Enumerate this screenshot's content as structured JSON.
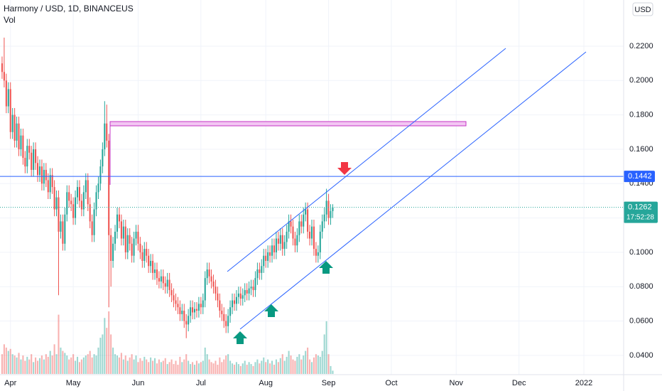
{
  "chart_data": {
    "type": "candlestick",
    "title": "Harmony / USD, 1D, BINANCEUS",
    "volume_label": "Vol",
    "currency": "USD",
    "up_color": "#26a69a",
    "down_color": "#ef5350",
    "grid": true,
    "ylim": [
      0.0267,
      0.2469
    ],
    "yticks": [
      {
        "value": 0.04,
        "label": "0.0400"
      },
      {
        "value": 0.06,
        "label": "0.0600"
      },
      {
        "value": 0.08,
        "label": "0.0800"
      },
      {
        "value": 0.1,
        "label": "0.1000"
      },
      {
        "value": 0.12,
        "label": "0.1200"
      },
      {
        "value": 0.14,
        "label": "0.1400"
      },
      {
        "value": 0.16,
        "label": "0.1600"
      },
      {
        "value": 0.18,
        "label": "0.1800"
      },
      {
        "value": 0.2,
        "label": "0.2000"
      },
      {
        "value": 0.22,
        "label": "0.2200"
      }
    ],
    "xlim": [
      -1,
      297
    ],
    "xticks": [
      {
        "value": 4,
        "label": "Apr"
      },
      {
        "value": 34,
        "label": "May"
      },
      {
        "value": 65,
        "label": "Jun"
      },
      {
        "value": 95,
        "label": "Jul"
      },
      {
        "value": 126,
        "label": "Aug"
      },
      {
        "value": 156,
        "label": "Sep"
      },
      {
        "value": 186,
        "label": "Oct"
      },
      {
        "value": 217,
        "label": "Nov"
      },
      {
        "value": 247,
        "label": "Dec"
      },
      {
        "value": 278,
        "label": "2022"
      }
    ],
    "level": {
      "value": 0.1442,
      "label": "0.1442",
      "color": "#2962ff"
    },
    "last": {
      "value": 0.1262,
      "label": "0.1262",
      "countdown": "17:52:28"
    },
    "ohlc": [
      [
        0.21,
        0.214,
        0.201,
        0.205
      ],
      [
        0.205,
        0.225,
        0.196,
        0.2
      ],
      [
        0.2,
        0.204,
        0.181,
        0.185
      ],
      [
        0.185,
        0.199,
        0.181,
        0.195
      ],
      [
        0.195,
        0.199,
        0.166,
        0.17
      ],
      [
        0.17,
        0.184,
        0.166,
        0.18
      ],
      [
        0.18,
        0.184,
        0.161,
        0.165
      ],
      [
        0.165,
        0.179,
        0.161,
        0.175
      ],
      [
        0.175,
        0.179,
        0.156,
        0.16
      ],
      [
        0.16,
        0.172,
        0.156,
        0.168
      ],
      [
        0.168,
        0.172,
        0.151,
        0.155
      ],
      [
        0.155,
        0.159,
        0.146,
        0.15
      ],
      [
        0.15,
        0.166,
        0.146,
        0.162
      ],
      [
        0.162,
        0.166,
        0.154,
        0.158
      ],
      [
        0.158,
        0.162,
        0.144,
        0.148
      ],
      [
        0.148,
        0.164,
        0.144,
        0.16
      ],
      [
        0.16,
        0.164,
        0.148,
        0.152
      ],
      [
        0.152,
        0.156,
        0.141,
        0.145
      ],
      [
        0.145,
        0.154,
        0.141,
        0.15
      ],
      [
        0.15,
        0.154,
        0.136,
        0.14
      ],
      [
        0.14,
        0.152,
        0.136,
        0.148
      ],
      [
        0.148,
        0.152,
        0.138,
        0.142
      ],
      [
        0.142,
        0.146,
        0.131,
        0.135
      ],
      [
        0.135,
        0.149,
        0.131,
        0.145
      ],
      [
        0.145,
        0.149,
        0.134,
        0.138
      ],
      [
        0.138,
        0.142,
        0.121,
        0.125
      ],
      [
        0.125,
        0.136,
        0.121,
        0.132
      ],
      [
        0.132,
        0.136,
        0.075,
        0.112
      ],
      [
        0.112,
        0.122,
        0.108,
        0.118
      ],
      [
        0.118,
        0.122,
        0.101,
        0.105
      ],
      [
        0.105,
        0.126,
        0.101,
        0.122
      ],
      [
        0.122,
        0.139,
        0.118,
        0.135
      ],
      [
        0.135,
        0.139,
        0.126,
        0.13
      ],
      [
        0.13,
        0.134,
        0.124,
        0.128
      ],
      [
        0.128,
        0.132,
        0.116,
        0.12
      ],
      [
        0.12,
        0.136,
        0.116,
        0.132
      ],
      [
        0.132,
        0.142,
        0.128,
        0.138
      ],
      [
        0.138,
        0.142,
        0.126,
        0.13
      ],
      [
        0.13,
        0.134,
        0.121,
        0.125
      ],
      [
        0.125,
        0.139,
        0.121,
        0.135
      ],
      [
        0.135,
        0.146,
        0.131,
        0.142
      ],
      [
        0.142,
        0.146,
        0.124,
        0.128
      ],
      [
        0.128,
        0.132,
        0.114,
        0.118
      ],
      [
        0.118,
        0.122,
        0.106,
        0.11
      ],
      [
        0.11,
        0.129,
        0.106,
        0.125
      ],
      [
        0.125,
        0.139,
        0.121,
        0.135
      ],
      [
        0.135,
        0.144,
        0.131,
        0.14
      ],
      [
        0.14,
        0.154,
        0.136,
        0.15
      ],
      [
        0.15,
        0.164,
        0.146,
        0.16
      ],
      [
        0.16,
        0.188,
        0.156,
        0.175
      ],
      [
        0.175,
        0.186,
        0.161,
        0.165
      ],
      [
        0.165,
        0.169,
        0.068,
        0.11
      ],
      [
        0.11,
        0.114,
        0.08,
        0.095
      ],
      [
        0.095,
        0.109,
        0.091,
        0.105
      ],
      [
        0.105,
        0.116,
        0.101,
        0.112
      ],
      [
        0.112,
        0.126,
        0.108,
        0.122
      ],
      [
        0.122,
        0.126,
        0.114,
        0.118
      ],
      [
        0.118,
        0.122,
        0.104,
        0.108
      ],
      [
        0.108,
        0.119,
        0.104,
        0.115
      ],
      [
        0.115,
        0.119,
        0.096,
        0.1
      ],
      [
        0.1,
        0.114,
        0.096,
        0.11
      ],
      [
        0.11,
        0.114,
        0.101,
        0.105
      ],
      [
        0.105,
        0.109,
        0.094,
        0.098
      ],
      [
        0.098,
        0.112,
        0.094,
        0.108
      ],
      [
        0.108,
        0.116,
        0.104,
        0.112
      ],
      [
        0.112,
        0.116,
        0.101,
        0.105
      ],
      [
        0.105,
        0.109,
        0.096,
        0.1
      ],
      [
        0.1,
        0.104,
        0.091,
        0.095
      ],
      [
        0.095,
        0.106,
        0.091,
        0.102
      ],
      [
        0.102,
        0.106,
        0.094,
        0.098
      ],
      [
        0.098,
        0.102,
        0.088,
        0.092
      ],
      [
        0.092,
        0.099,
        0.088,
        0.095
      ],
      [
        0.095,
        0.099,
        0.084,
        0.088
      ],
      [
        0.088,
        0.094,
        0.084,
        0.09
      ],
      [
        0.09,
        0.094,
        0.081,
        0.085
      ],
      [
        0.085,
        0.089,
        0.079,
        0.083
      ],
      [
        0.083,
        0.09,
        0.079,
        0.086
      ],
      [
        0.086,
        0.09,
        0.078,
        0.082
      ],
      [
        0.082,
        0.086,
        0.076,
        0.08
      ],
      [
        0.08,
        0.088,
        0.076,
        0.084
      ],
      [
        0.084,
        0.088,
        0.074,
        0.078
      ],
      [
        0.078,
        0.082,
        0.071,
        0.075
      ],
      [
        0.075,
        0.079,
        0.068,
        0.072
      ],
      [
        0.072,
        0.076,
        0.066,
        0.07
      ],
      [
        0.07,
        0.074,
        0.064,
        0.068
      ],
      [
        0.068,
        0.072,
        0.06,
        0.064
      ],
      [
        0.064,
        0.07,
        0.06,
        0.066
      ],
      [
        0.066,
        0.07,
        0.056,
        0.06
      ],
      [
        0.06,
        0.064,
        0.05,
        0.058
      ],
      [
        0.058,
        0.067,
        0.054,
        0.063
      ],
      [
        0.063,
        0.072,
        0.059,
        0.068
      ],
      [
        0.068,
        0.072,
        0.061,
        0.065
      ],
      [
        0.065,
        0.071,
        0.061,
        0.067
      ],
      [
        0.067,
        0.071,
        0.062,
        0.066
      ],
      [
        0.066,
        0.074,
        0.062,
        0.07
      ],
      [
        0.07,
        0.074,
        0.064,
        0.068
      ],
      [
        0.068,
        0.076,
        0.064,
        0.072
      ],
      [
        0.072,
        0.089,
        0.068,
        0.085
      ],
      [
        0.085,
        0.094,
        0.081,
        0.09
      ],
      [
        0.09,
        0.094,
        0.082,
        0.086
      ],
      [
        0.086,
        0.09,
        0.079,
        0.083
      ],
      [
        0.083,
        0.087,
        0.076,
        0.08
      ],
      [
        0.08,
        0.084,
        0.072,
        0.076
      ],
      [
        0.076,
        0.08,
        0.068,
        0.072
      ],
      [
        0.072,
        0.076,
        0.062,
        0.066
      ],
      [
        0.066,
        0.07,
        0.06,
        0.064
      ],
      [
        0.064,
        0.068,
        0.056,
        0.06
      ],
      [
        0.06,
        0.064,
        0.053,
        0.057
      ],
      [
        0.057,
        0.067,
        0.053,
        0.063
      ],
      [
        0.063,
        0.072,
        0.059,
        0.068
      ],
      [
        0.068,
        0.076,
        0.064,
        0.072
      ],
      [
        0.072,
        0.076,
        0.066,
        0.07
      ],
      [
        0.07,
        0.078,
        0.066,
        0.074
      ],
      [
        0.074,
        0.08,
        0.07,
        0.076
      ],
      [
        0.076,
        0.08,
        0.069,
        0.073
      ],
      [
        0.073,
        0.079,
        0.069,
        0.075
      ],
      [
        0.075,
        0.082,
        0.071,
        0.078
      ],
      [
        0.078,
        0.082,
        0.072,
        0.076
      ],
      [
        0.076,
        0.083,
        0.072,
        0.079
      ],
      [
        0.079,
        0.084,
        0.075,
        0.08
      ],
      [
        0.08,
        0.084,
        0.074,
        0.078
      ],
      [
        0.078,
        0.089,
        0.074,
        0.085
      ],
      [
        0.085,
        0.094,
        0.081,
        0.09
      ],
      [
        0.09,
        0.094,
        0.084,
        0.088
      ],
      [
        0.088,
        0.096,
        0.084,
        0.092
      ],
      [
        0.092,
        0.102,
        0.088,
        0.098
      ],
      [
        0.098,
        0.102,
        0.091,
        0.095
      ],
      [
        0.095,
        0.104,
        0.091,
        0.1
      ],
      [
        0.1,
        0.104,
        0.094,
        0.098
      ],
      [
        0.098,
        0.108,
        0.094,
        0.104
      ],
      [
        0.104,
        0.108,
        0.096,
        0.1
      ],
      [
        0.1,
        0.112,
        0.096,
        0.108
      ],
      [
        0.108,
        0.112,
        0.101,
        0.105
      ],
      [
        0.105,
        0.114,
        0.101,
        0.11
      ],
      [
        0.11,
        0.114,
        0.098,
        0.102
      ],
      [
        0.102,
        0.11,
        0.098,
        0.106
      ],
      [
        0.106,
        0.116,
        0.102,
        0.112
      ],
      [
        0.112,
        0.122,
        0.108,
        0.118
      ],
      [
        0.118,
        0.122,
        0.111,
        0.115
      ],
      [
        0.115,
        0.119,
        0.104,
        0.108
      ],
      [
        0.108,
        0.112,
        0.1,
        0.104
      ],
      [
        0.104,
        0.114,
        0.1,
        0.11
      ],
      [
        0.11,
        0.122,
        0.106,
        0.118
      ],
      [
        0.118,
        0.122,
        0.111,
        0.115
      ],
      [
        0.115,
        0.126,
        0.111,
        0.122
      ],
      [
        0.122,
        0.129,
        0.118,
        0.125
      ],
      [
        0.125,
        0.129,
        0.108,
        0.112
      ],
      [
        0.112,
        0.116,
        0.104,
        0.108
      ],
      [
        0.108,
        0.119,
        0.104,
        0.115
      ],
      [
        0.115,
        0.119,
        0.098,
        0.102
      ],
      [
        0.102,
        0.106,
        0.094,
        0.098
      ],
      [
        0.098,
        0.104,
        0.094,
        0.1
      ],
      [
        0.1,
        0.116,
        0.096,
        0.112
      ],
      [
        0.112,
        0.122,
        0.108,
        0.118
      ],
      [
        0.118,
        0.126,
        0.114,
        0.122
      ],
      [
        0.122,
        0.137,
        0.118,
        0.13
      ],
      [
        0.13,
        0.134,
        0.116,
        0.12
      ],
      [
        0.12,
        0.128,
        0.116,
        0.124
      ],
      [
        0.124,
        0.128,
        0.12,
        0.1262
      ]
    ],
    "volume": [
      30,
      45,
      40,
      35,
      38,
      30,
      28,
      25,
      32,
      22,
      28,
      20,
      26,
      22,
      30,
      18,
      25,
      20,
      24,
      28,
      22,
      30,
      26,
      35,
      28,
      45,
      30,
      90,
      40,
      35,
      32,
      28,
      22,
      25,
      30,
      20,
      26,
      18,
      22,
      25,
      28,
      30,
      35,
      25,
      30,
      28,
      40,
      55,
      60,
      85,
      70,
      95,
      60,
      40,
      30,
      28,
      25,
      32,
      22,
      28,
      20,
      25,
      30,
      22,
      28,
      18,
      24,
      20,
      26,
      22,
      18,
      25,
      20,
      24,
      16,
      22,
      18,
      20,
      24,
      15,
      18,
      22,
      15,
      20,
      14,
      26,
      18,
      22,
      30,
      20,
      15,
      18,
      14,
      20,
      16,
      18,
      20,
      40,
      30,
      22,
      18,
      16,
      20,
      14,
      25,
      18,
      22,
      28,
      30,
      20,
      16,
      14,
      18,
      15,
      12,
      16,
      20,
      14,
      18,
      15,
      12,
      18,
      22,
      16,
      20,
      25,
      18,
      22,
      16,
      20,
      14,
      22,
      18,
      24,
      30,
      20,
      26,
      35,
      28,
      22,
      20,
      26,
      30,
      22,
      28,
      35,
      40,
      22,
      18,
      25,
      30,
      28,
      26,
      35,
      60,
      80,
      30,
      12,
      5
    ]
  }
}
